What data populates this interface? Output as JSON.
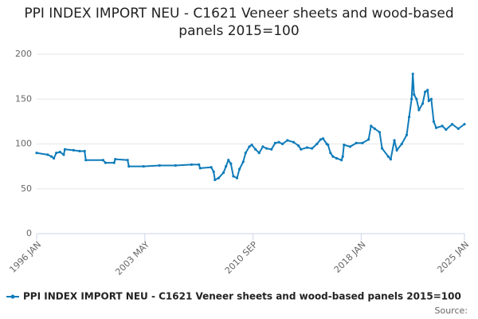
{
  "chart_data": {
    "type": "line",
    "title": "PPI INDEX IMPORT NEU - C1621 Veneer sheets and wood-based panels 2015=100",
    "source_label": "Source:",
    "x": [
      "1996 JAN",
      "1996 OCT",
      "1997 JAN",
      "1997 MAR",
      "1997 MAY",
      "1997 AUG",
      "1997 NOV",
      "1997 DEC",
      "1998 JUL",
      "1998 DEC",
      "1999 APR",
      "1999 MAY",
      "2000 JUL",
      "2000 SEP",
      "2001 APR",
      "2001 MAY",
      "2002 MAR",
      "2002 APR",
      "2003 APR",
      "2004 MAY",
      "2005 JUN",
      "2006 JUL",
      "2007 JAN",
      "2007 FEB",
      "2007 NOV",
      "2008 JAN",
      "2008 FEB",
      "2008 MAY",
      "2008 SEP",
      "2008 NOV",
      "2009 JAN",
      "2009 MAR",
      "2009 MAY",
      "2009 AUG",
      "2009 OCT",
      "2010 JAN",
      "2010 MAR",
      "2010 JUN",
      "2010 AUG",
      "2010 NOV",
      "2011 FEB",
      "2011 MAY",
      "2011 AUG",
      "2011 DEC",
      "2012 MAR",
      "2012 JUN",
      "2012 SEP",
      "2013 JAN",
      "2013 JUN",
      "2013 OCT",
      "2013 DEC",
      "2014 MAY",
      "2014 SEP",
      "2015 JAN",
      "2015 APR",
      "2015 JUN",
      "2015 SEP",
      "2015 OCT",
      "2015 DEC",
      "2016 FEB",
      "2016 MAY",
      "2016 SEP",
      "2016 OCT",
      "2016 NOV",
      "2017 APR",
      "2017 SEP",
      "2018 FEB",
      "2018 JUL",
      "2018 SEP",
      "2018 DEC",
      "2019 APR",
      "2019 JUN",
      "2019 NOV",
      "2020 JAN",
      "2020 APR",
      "2020 JUN",
      "2020 OCT",
      "2021 FEB",
      "2021 APR",
      "2021 JUN",
      "2021 JUL",
      "2021 AUG",
      "2021 OCT",
      "2021 DEC",
      "2022 MAR",
      "2022 MAY",
      "2022 JUL",
      "2022 AUG",
      "2022 OCT",
      "2022 DEC",
      "2023 FEB",
      "2023 JUL",
      "2023 OCT",
      "2024 MAR",
      "2024 AUG",
      "2025 JAN"
    ],
    "series": [
      {
        "name": "PPI INDEX IMPORT NEU - C1621 Veneer sheets and wood-based panels 2015=100",
        "color": "#0f7cba",
        "values": [
          90,
          88,
          86,
          84,
          90,
          91,
          88,
          94,
          93,
          92,
          92,
          82,
          82,
          79,
          79,
          83,
          82,
          75,
          75,
          76,
          76,
          77,
          77,
          73,
          74,
          69,
          60,
          62,
          68,
          75,
          82,
          78,
          64,
          62,
          72,
          80,
          90,
          97,
          99,
          94,
          90,
          97,
          95,
          94,
          101,
          102,
          100,
          104,
          102,
          98,
          94,
          96,
          95,
          100,
          105,
          106,
          100,
          99,
          90,
          86,
          84,
          82,
          86,
          99,
          97,
          101,
          101,
          105,
          120,
          117,
          113,
          95,
          86,
          83,
          104,
          93,
          100,
          110,
          130,
          150,
          178,
          155,
          150,
          138,
          145,
          158,
          160,
          148,
          150,
          125,
          118,
          120,
          116,
          122,
          117,
          122
        ]
      }
    ],
    "xlim": [
      "1996 JAN",
      "2025 JAN"
    ],
    "xticks": [
      "1996 JAN",
      "2003 MAY",
      "2010 SEP",
      "2018 JAN",
      "2025 JAN"
    ],
    "ylim": [
      0,
      200
    ],
    "yticks": [
      0,
      50,
      100,
      150,
      200
    ],
    "grid": true
  }
}
